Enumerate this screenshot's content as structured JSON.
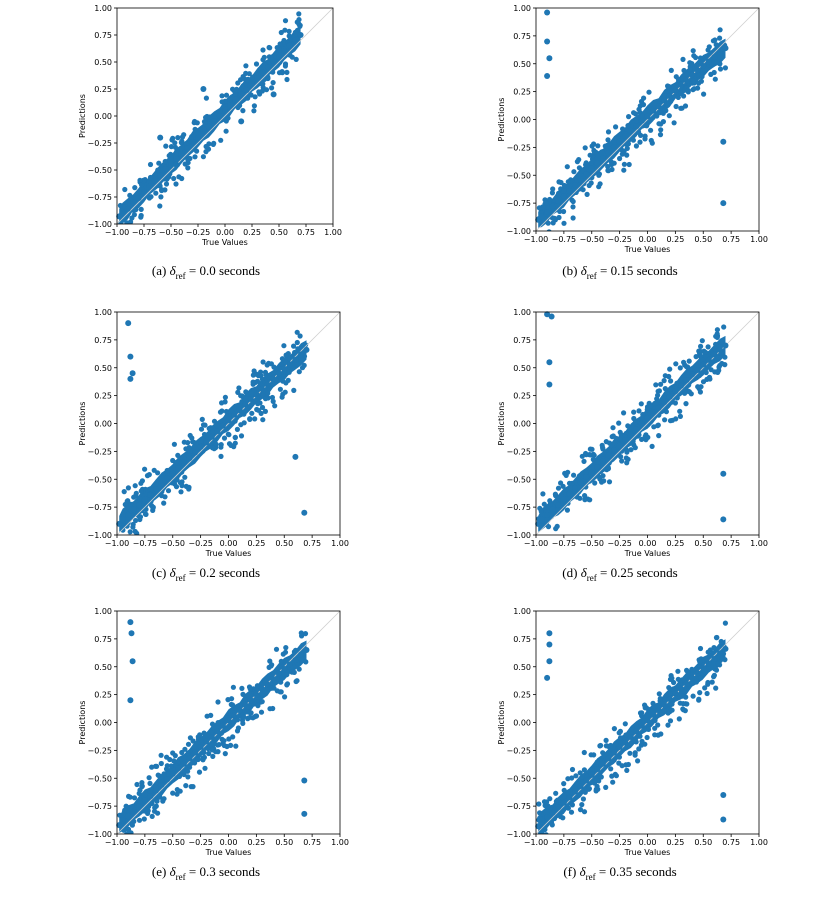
{
  "chart_data": [
    {
      "type": "scatter",
      "panel": "(a)",
      "caption": {
        "prefix": "(a)",
        "symbol": "δ",
        "subscript": "ref",
        "value": "= 0.0 seconds"
      },
      "xlabel": "True Values",
      "ylabel": "Predictions",
      "xlim": [
        -1.0,
        1.0
      ],
      "ylim": [
        -1.0,
        1.0
      ],
      "xticks": [
        "−1.00",
        "−0.75",
        "−0.50",
        "−0.25",
        "0.00",
        "0.25",
        "0.50",
        "0.75",
        "1.00"
      ],
      "yticks": [
        "−1.00",
        "−0.75",
        "−0.50",
        "−0.25",
        "0.00",
        "0.25",
        "0.50",
        "0.75",
        "1.00"
      ],
      "reference_line": "y = x",
      "point_color": "#1f77b4",
      "x": [
        -0.98,
        -0.95,
        -0.9,
        -0.85,
        -0.8,
        -0.75,
        -0.7,
        -0.65,
        -0.6,
        -0.55,
        -0.5,
        -0.45,
        -0.4,
        -0.35,
        -0.3,
        -0.25,
        -0.2,
        -0.15,
        -0.1,
        -0.05,
        0.0,
        0.05,
        0.1,
        0.15,
        0.2,
        0.25,
        0.3,
        0.35,
        0.4,
        0.45,
        0.5,
        0.55,
        0.6,
        0.65,
        0.7,
        -0.2,
        -0.6,
        -0.45,
        0.45,
        0.15
      ],
      "y": [
        -0.93,
        -0.9,
        -0.86,
        -0.8,
        -0.76,
        -0.7,
        -0.65,
        -0.6,
        -0.55,
        -0.49,
        -0.45,
        -0.4,
        -0.35,
        -0.3,
        -0.24,
        -0.2,
        -0.15,
        -0.1,
        -0.05,
        0.0,
        0.05,
        0.1,
        0.15,
        0.2,
        0.24,
        0.3,
        0.35,
        0.4,
        0.45,
        0.5,
        0.55,
        0.6,
        0.65,
        0.7,
        0.75,
        0.25,
        -0.2,
        -0.45,
        0.2,
        -0.05
      ]
    },
    {
      "type": "scatter",
      "panel": "(b)",
      "caption": {
        "prefix": "(b)",
        "symbol": "δ",
        "subscript": "ref",
        "value": "= 0.15 seconds"
      },
      "xlabel": "True Values",
      "ylabel": "Predictions",
      "xlim": [
        -1.0,
        1.0
      ],
      "ylim": [
        -1.0,
        1.0
      ],
      "xticks": [
        "−1.00",
        "−0.75",
        "−0.50",
        "−0.25",
        "0.00",
        "0.25",
        "0.50",
        "0.75",
        "1.00"
      ],
      "yticks": [
        "−1.00",
        "−0.75",
        "−0.50",
        "−0.25",
        "0.00",
        "0.25",
        "0.50",
        "0.75",
        "1.00"
      ],
      "reference_line": "y = x",
      "point_color": "#1f77b4",
      "x": [
        -0.98,
        -0.95,
        -0.9,
        -0.85,
        -0.8,
        -0.75,
        -0.7,
        -0.65,
        -0.6,
        -0.55,
        -0.5,
        -0.45,
        -0.4,
        -0.35,
        -0.3,
        -0.25,
        -0.2,
        -0.15,
        -0.1,
        -0.05,
        0.0,
        0.05,
        0.1,
        0.15,
        0.2,
        0.25,
        0.3,
        0.35,
        0.4,
        0.45,
        0.5,
        0.55,
        0.6,
        0.65,
        0.7,
        -0.9,
        -0.9,
        -0.88,
        -0.9,
        0.68,
        0.68
      ],
      "y": [
        -0.9,
        -0.87,
        -0.83,
        -0.78,
        -0.73,
        -0.69,
        -0.64,
        -0.59,
        -0.54,
        -0.49,
        -0.44,
        -0.39,
        -0.35,
        -0.3,
        -0.25,
        -0.2,
        -0.15,
        -0.1,
        -0.06,
        -0.01,
        0.03,
        0.08,
        0.12,
        0.17,
        0.21,
        0.26,
        0.31,
        0.35,
        0.4,
        0.44,
        0.48,
        0.52,
        0.56,
        0.6,
        0.64,
        0.96,
        0.7,
        0.55,
        0.39,
        -0.2,
        -0.75
      ]
    },
    {
      "type": "scatter",
      "panel": "(c)",
      "caption": {
        "prefix": "(c)",
        "symbol": "δ",
        "subscript": "ref",
        "value": "= 0.2 seconds"
      },
      "xlabel": "True Values",
      "ylabel": "Predictions",
      "xlim": [
        -1.0,
        1.0
      ],
      "ylim": [
        -1.0,
        1.0
      ],
      "xticks": [
        "−1.00",
        "−0.75",
        "−0.50",
        "−0.25",
        "0.00",
        "0.25",
        "0.50",
        "0.75",
        "1.00"
      ],
      "yticks": [
        "−1.00",
        "−0.75",
        "−0.50",
        "−0.25",
        "0.00",
        "0.25",
        "0.50",
        "0.75",
        "1.00"
      ],
      "reference_line": "y = x",
      "point_color": "#1f77b4",
      "x": [
        -0.98,
        -0.95,
        -0.9,
        -0.85,
        -0.8,
        -0.75,
        -0.7,
        -0.65,
        -0.6,
        -0.55,
        -0.5,
        -0.45,
        -0.4,
        -0.35,
        -0.3,
        -0.25,
        -0.2,
        -0.15,
        -0.1,
        -0.05,
        0.0,
        0.05,
        0.1,
        0.15,
        0.2,
        0.25,
        0.3,
        0.35,
        0.4,
        0.45,
        0.5,
        0.55,
        0.6,
        0.65,
        0.7,
        -0.9,
        -0.88,
        -0.86,
        -0.88,
        0.68,
        0.6
      ],
      "y": [
        -0.9,
        -0.86,
        -0.82,
        -0.77,
        -0.73,
        -0.68,
        -0.64,
        -0.59,
        -0.54,
        -0.49,
        -0.45,
        -0.4,
        -0.35,
        -0.31,
        -0.26,
        -0.21,
        -0.17,
        -0.12,
        -0.07,
        -0.02,
        0.03,
        0.08,
        0.12,
        0.17,
        0.22,
        0.26,
        0.31,
        0.35,
        0.4,
        0.45,
        0.49,
        0.53,
        0.57,
        0.62,
        0.66,
        0.9,
        0.6,
        0.45,
        0.4,
        -0.8,
        -0.3
      ]
    },
    {
      "type": "scatter",
      "panel": "(d)",
      "caption": {
        "prefix": "(d)",
        "symbol": "δ",
        "subscript": "ref",
        "value": "= 0.25 seconds"
      },
      "xlabel": "True Values",
      "ylabel": "Predictions",
      "xlim": [
        -1.0,
        1.0
      ],
      "ylim": [
        -1.0,
        1.0
      ],
      "xticks": [
        "−1.00",
        "−0.75",
        "−0.50",
        "−0.25",
        "0.00",
        "0.25",
        "0.50",
        "0.75",
        "1.00"
      ],
      "yticks": [
        "−1.00",
        "−0.75",
        "−0.50",
        "−0.25",
        "0.00",
        "0.25",
        "0.50",
        "0.75",
        "1.00"
      ],
      "reference_line": "y = x",
      "point_color": "#1f77b4",
      "x": [
        -0.98,
        -0.95,
        -0.9,
        -0.85,
        -0.8,
        -0.75,
        -0.7,
        -0.65,
        -0.6,
        -0.55,
        -0.5,
        -0.45,
        -0.4,
        -0.35,
        -0.3,
        -0.25,
        -0.2,
        -0.15,
        -0.1,
        -0.05,
        0.0,
        0.05,
        0.1,
        0.15,
        0.2,
        0.25,
        0.3,
        0.35,
        0.4,
        0.45,
        0.5,
        0.55,
        0.6,
        0.65,
        0.7,
        -0.9,
        -0.86,
        -0.88,
        -0.88,
        0.68,
        0.68
      ],
      "y": [
        -0.9,
        -0.86,
        -0.82,
        -0.77,
        -0.73,
        -0.68,
        -0.63,
        -0.58,
        -0.53,
        -0.48,
        -0.44,
        -0.39,
        -0.34,
        -0.29,
        -0.24,
        -0.2,
        -0.15,
        -0.1,
        -0.05,
        0.0,
        0.05,
        0.1,
        0.14,
        0.19,
        0.24,
        0.29,
        0.34,
        0.39,
        0.44,
        0.48,
        0.53,
        0.57,
        0.62,
        0.66,
        0.7,
        0.98,
        0.96,
        0.55,
        0.35,
        -0.45,
        -0.86
      ]
    },
    {
      "type": "scatter",
      "panel": "(e)",
      "caption": {
        "prefix": "(e)",
        "symbol": "δ",
        "subscript": "ref",
        "value": "= 0.3 seconds"
      },
      "xlabel": "True Values",
      "ylabel": "Predictions",
      "xlim": [
        -1.0,
        1.0
      ],
      "ylim": [
        -1.0,
        1.0
      ],
      "xticks": [
        "−1.00",
        "−0.75",
        "−0.50",
        "−0.25",
        "0.00",
        "0.25",
        "0.50",
        "0.75",
        "1.00"
      ],
      "yticks": [
        "−1.00",
        "−0.75",
        "−0.50",
        "−0.25",
        "0.00",
        "0.25",
        "0.50",
        "0.75",
        "1.00"
      ],
      "reference_line": "y = x",
      "point_color": "#1f77b4",
      "x": [
        -0.98,
        -0.95,
        -0.9,
        -0.85,
        -0.8,
        -0.75,
        -0.7,
        -0.65,
        -0.6,
        -0.55,
        -0.5,
        -0.45,
        -0.4,
        -0.35,
        -0.3,
        -0.25,
        -0.2,
        -0.15,
        -0.1,
        -0.05,
        0.0,
        0.05,
        0.1,
        0.15,
        0.2,
        0.25,
        0.3,
        0.35,
        0.4,
        0.45,
        0.5,
        0.55,
        0.6,
        0.65,
        0.7,
        -0.88,
        -0.87,
        -0.86,
        -0.88,
        0.68,
        0.68
      ],
      "y": [
        -0.92,
        -0.88,
        -0.84,
        -0.8,
        -0.75,
        -0.7,
        -0.66,
        -0.61,
        -0.56,
        -0.51,
        -0.46,
        -0.41,
        -0.37,
        -0.32,
        -0.27,
        -0.22,
        -0.17,
        -0.13,
        -0.08,
        -0.03,
        0.02,
        0.06,
        0.11,
        0.16,
        0.2,
        0.25,
        0.3,
        0.34,
        0.39,
        0.44,
        0.48,
        0.52,
        0.56,
        0.61,
        0.65,
        0.9,
        0.8,
        0.55,
        0.2,
        -0.52,
        -0.82
      ]
    },
    {
      "type": "scatter",
      "panel": "(f)",
      "caption": {
        "prefix": "(f)",
        "symbol": "δ",
        "subscript": "ref",
        "value": "= 0.35 seconds"
      },
      "xlabel": "True Values",
      "ylabel": "Predictions",
      "xlim": [
        -1.0,
        1.0
      ],
      "ylim": [
        -1.0,
        1.0
      ],
      "xticks": [
        "−1.00",
        "−0.75",
        "−0.50",
        "−0.25",
        "0.00",
        "0.25",
        "0.50",
        "0.75",
        "1.00"
      ],
      "yticks": [
        "−1.00",
        "−0.75",
        "−0.50",
        "−0.25",
        "0.00",
        "0.25",
        "0.50",
        "0.75",
        "1.00"
      ],
      "reference_line": "y = x",
      "point_color": "#1f77b4",
      "x": [
        -0.98,
        -0.95,
        -0.9,
        -0.85,
        -0.8,
        -0.75,
        -0.7,
        -0.65,
        -0.6,
        -0.55,
        -0.5,
        -0.45,
        -0.4,
        -0.35,
        -0.3,
        -0.25,
        -0.2,
        -0.15,
        -0.1,
        -0.05,
        0.0,
        0.05,
        0.1,
        0.15,
        0.2,
        0.25,
        0.3,
        0.35,
        0.4,
        0.45,
        0.5,
        0.55,
        0.6,
        0.65,
        0.7,
        -0.88,
        -0.88,
        -0.88,
        -0.9,
        0.68,
        0.68
      ],
      "y": [
        -0.93,
        -0.89,
        -0.85,
        -0.81,
        -0.76,
        -0.72,
        -0.67,
        -0.62,
        -0.57,
        -0.52,
        -0.47,
        -0.42,
        -0.37,
        -0.32,
        -0.27,
        -0.22,
        -0.18,
        -0.13,
        -0.08,
        -0.03,
        0.02,
        0.07,
        0.11,
        0.16,
        0.21,
        0.26,
        0.3,
        0.35,
        0.4,
        0.44,
        0.49,
        0.53,
        0.57,
        0.62,
        0.66,
        0.8,
        0.7,
        0.55,
        0.4,
        -0.65,
        -0.87
      ]
    }
  ]
}
